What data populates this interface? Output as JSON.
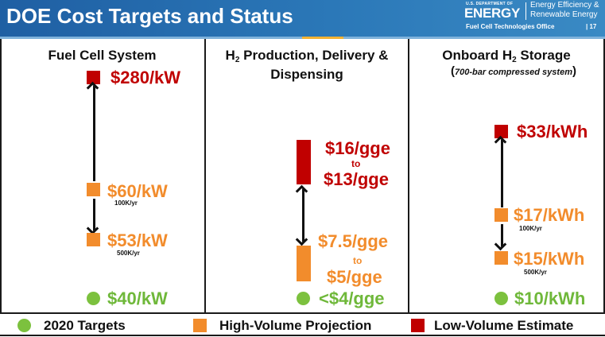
{
  "header": {
    "title": "DOE Cost Targets and Status",
    "logo_small": "U.S. DEPARTMENT OF",
    "logo_main": "ENERGY",
    "logo_line1": "Energy Efficiency &",
    "logo_line2": "Renewable Energy",
    "office": "Fuel Cell Technologies Office",
    "page_number": "| 17"
  },
  "columns": {
    "fuel_cell": {
      "title": "Fuel Cell System",
      "low_volume": "$280/kW",
      "high_volume_100k": "$60/kW",
      "volume_100k": "100K/yr",
      "high_volume_500k": "$53/kW",
      "volume_500k": "500K/yr",
      "target": "$40/kW"
    },
    "h2_production": {
      "title_prefix": "H",
      "title_sub": "2",
      "title_suffix": " Production, Delivery &",
      "title_line2": "Dispensing",
      "low_high": "$16/gge",
      "low_to": "to",
      "low_low": "$13/gge",
      "high_high": "$7.5/gge",
      "high_to": "to",
      "high_low": "$5/gge",
      "target": "<$4/gge"
    },
    "storage": {
      "title_prefix": "Onboard H",
      "title_sub": "2",
      "title_suffix": " Storage",
      "note_open": "(",
      "note": "700-bar compressed system",
      "note_close": ")",
      "low_volume": "$33/kWh",
      "high_volume_100k": "$17/kWh",
      "volume_100k": "100K/yr",
      "high_volume_500k": "$15/kWh",
      "volume_500k": "500K/yr",
      "target": "$10/kWh"
    }
  },
  "legend": {
    "targets": "2020 Targets",
    "high_volume": "High-Volume Projection",
    "low_volume": "Low-Volume Estimate"
  },
  "colors": {
    "header_blue": "#1f5fa3",
    "target_green": "#7cc13e",
    "projection_orange": "#f28c2c",
    "estimate_red": "#c00000"
  }
}
